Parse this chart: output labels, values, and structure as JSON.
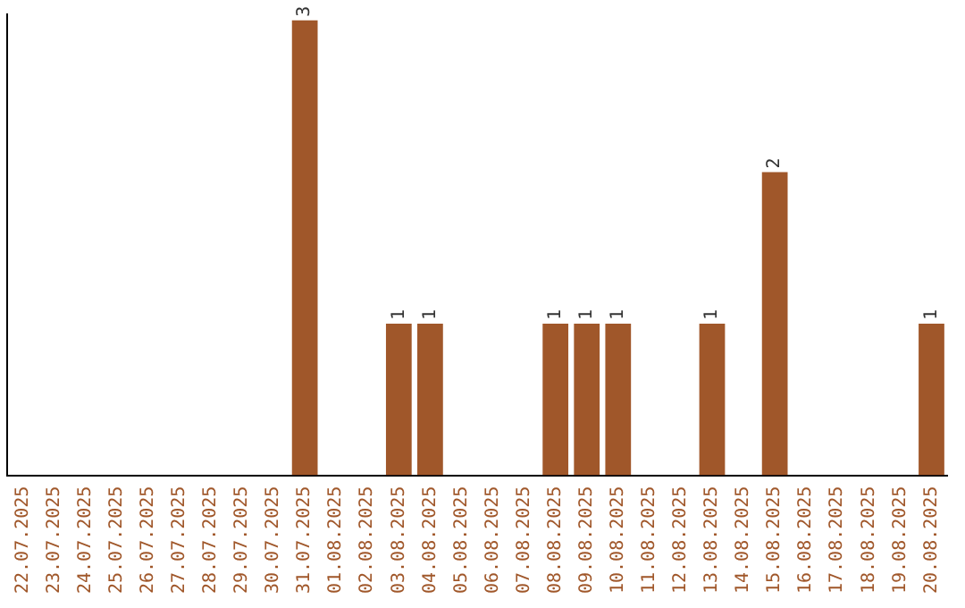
{
  "chart_data": {
    "type": "bar",
    "categories": [
      "22.07.2025",
      "23.07.2025",
      "24.07.2025",
      "25.07.2025",
      "26.07.2025",
      "27.07.2025",
      "28.07.2025",
      "29.07.2025",
      "30.07.2025",
      "31.07.2025",
      "01.08.2025",
      "02.08.2025",
      "03.08.2025",
      "04.08.2025",
      "05.08.2025",
      "06.08.2025",
      "07.08.2025",
      "08.08.2025",
      "09.08.2025",
      "10.08.2025",
      "11.08.2025",
      "12.08.2025",
      "13.08.2025",
      "14.08.2025",
      "15.08.2025",
      "16.08.2025",
      "17.08.2025",
      "18.08.2025",
      "19.08.2025",
      "20.08.2025"
    ],
    "values": [
      0,
      0,
      0,
      0,
      0,
      0,
      0,
      0,
      0,
      3,
      0,
      0,
      1,
      1,
      0,
      0,
      0,
      1,
      1,
      1,
      0,
      0,
      1,
      0,
      2,
      0,
      0,
      0,
      0,
      1
    ],
    "value_labels": [
      null,
      null,
      null,
      null,
      null,
      null,
      null,
      null,
      null,
      "3",
      null,
      null,
      "1",
      "1",
      null,
      null,
      null,
      "1",
      "1",
      "1",
      null,
      null,
      "1",
      null,
      "2",
      null,
      null,
      null,
      null,
      "1"
    ],
    "color": "#a0572a",
    "ylim": [
      0,
      3.04
    ],
    "tick_labels": "x",
    "grid": false,
    "legend": false
  }
}
